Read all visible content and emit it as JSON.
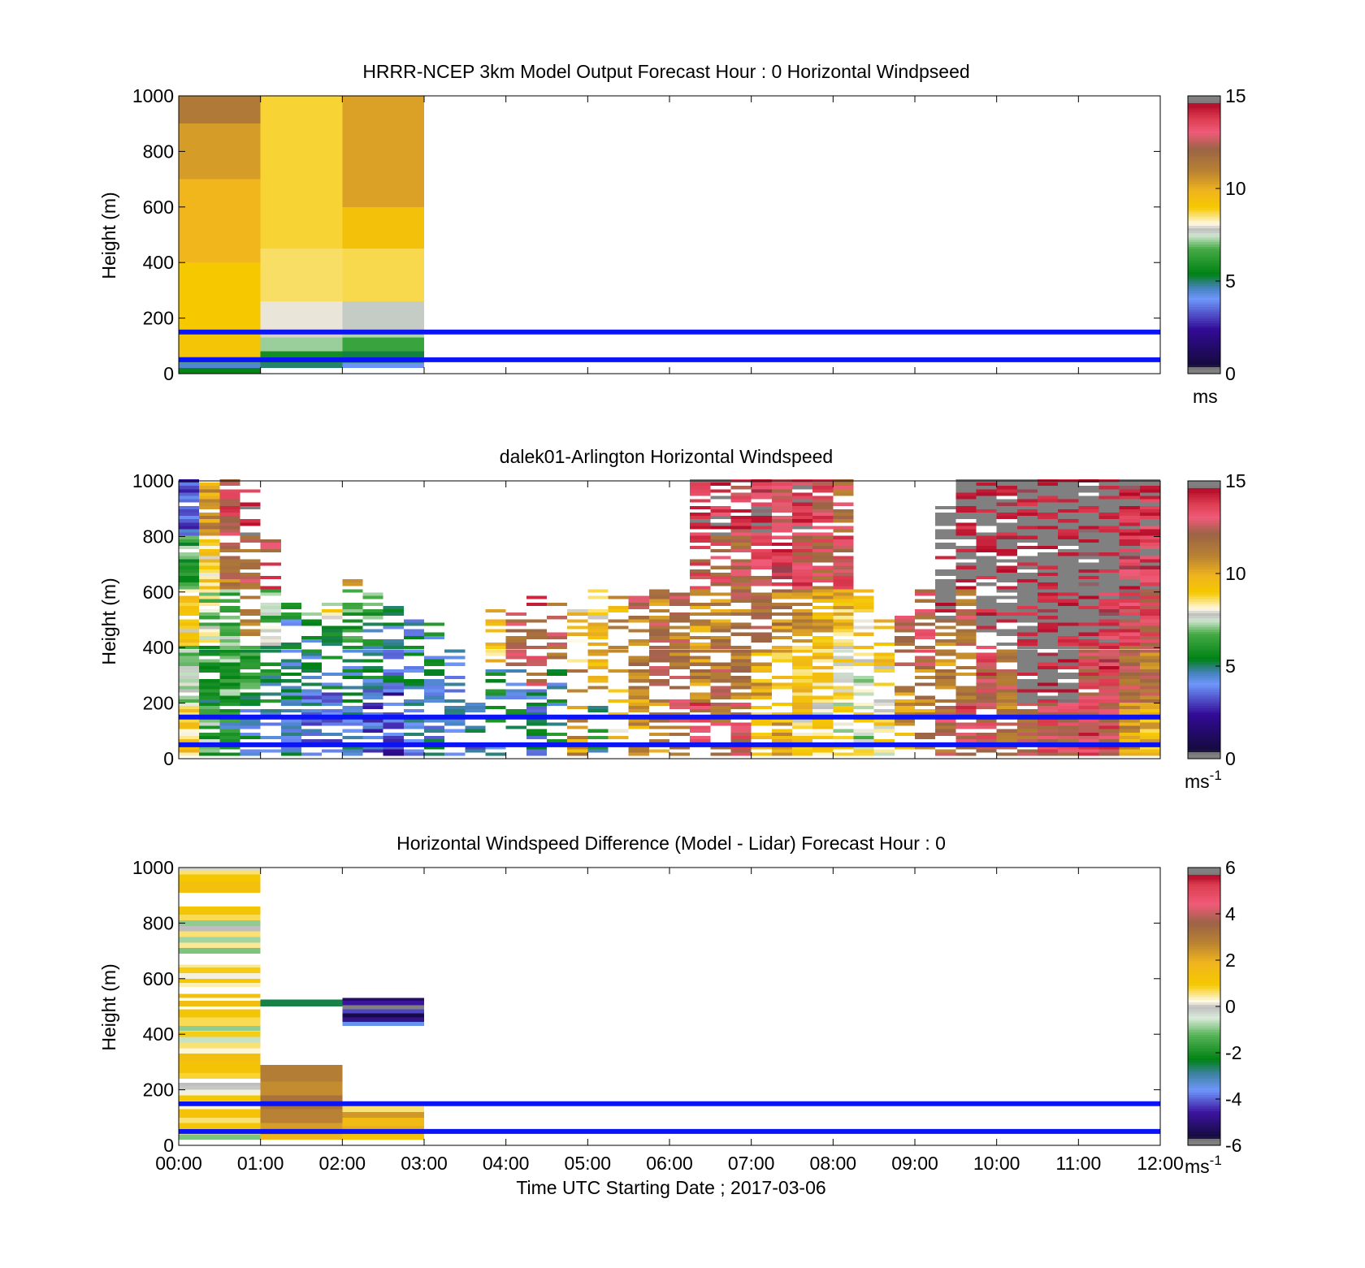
{
  "chart_data": [
    {
      "type": "heatmap",
      "title": "HRRR-NCEP 3km Model Output   Forecast Hour : 0 Horizontal Windpseed",
      "ylabel": "Height (m)",
      "xlabel": "",
      "xlim": [
        0,
        12
      ],
      "ylim": [
        0,
        1000
      ],
      "yticks": [
        "0",
        "200",
        "400",
        "600",
        "800",
        "1000"
      ],
      "xtick_labels": [],
      "colorbar": {
        "range": [
          0,
          15
        ],
        "ticks": [
          "0",
          "5",
          "10",
          "15"
        ],
        "unit": "ms",
        "unit_sup": "",
        "scale": "windspeed"
      },
      "reference_lines_m": [
        50,
        150
      ],
      "columns": [
        {
          "x_start": 0,
          "x_end": 1,
          "cells": [
            [
              0,
              20,
              5.5
            ],
            [
              20,
              40,
              4.5
            ],
            [
              40,
              60,
              6.8
            ],
            [
              60,
              150,
              9.2
            ],
            [
              150,
              400,
              9.0
            ],
            [
              400,
              700,
              9.8
            ],
            [
              700,
              900,
              10.4
            ],
            [
              900,
              1000,
              11.3
            ]
          ]
        },
        {
          "x_start": 1,
          "x_end": 2,
          "cells": [
            [
              20,
              40,
              5.0
            ],
            [
              40,
              80,
              5.8
            ],
            [
              80,
              130,
              7.2
            ],
            [
              130,
              160,
              7.9
            ],
            [
              160,
              260,
              8.0
            ],
            [
              260,
              450,
              8.6
            ],
            [
              450,
              1000,
              8.8
            ]
          ]
        },
        {
          "x_start": 2,
          "x_end": 3,
          "cells": [
            [
              20,
              40,
              4.0
            ],
            [
              40,
              80,
              5.2
            ],
            [
              80,
              130,
              6.5
            ],
            [
              130,
              160,
              7.3
            ],
            [
              160,
              260,
              7.7
            ],
            [
              260,
              450,
              8.7
            ],
            [
              450,
              600,
              9.3
            ],
            [
              600,
              1000,
              10.3
            ]
          ]
        }
      ]
    },
    {
      "type": "heatmap",
      "title": "dalek01-Arlington  Horizontal Windspeed",
      "ylabel": "Height (m)",
      "xlabel": "",
      "xlim": [
        0,
        12
      ],
      "ylim": [
        0,
        1000
      ],
      "yticks": [
        "0",
        "200",
        "400",
        "600",
        "800",
        "1000"
      ],
      "xtick_labels": [],
      "colorbar": {
        "range": [
          0,
          15
        ],
        "ticks": [
          "0",
          "5",
          "10",
          "15"
        ],
        "unit": "ms",
        "unit_sup": "-1",
        "scale": "windspeed"
      },
      "reference_lines_m": [
        50,
        150
      ],
      "time_step_h": 0.25,
      "columns_by_quarter_hour": [
        {
          "top": 1000,
          "level": [
            8.8,
            7.2,
            9.0,
            6.5,
            3.5
          ],
          "density": 0.95
        },
        {
          "top": 1000,
          "level": [
            6.5,
            6.0,
            7.5,
            9.0,
            10.5
          ],
          "density": 0.9
        },
        {
          "top": 1000,
          "level": [
            5.5,
            6.5,
            7.0,
            11.5,
            13.0
          ],
          "density": 0.85
        },
        {
          "top": 1000,
          "level": [
            5.0,
            6.0,
            10.5,
            12.0,
            14.0
          ],
          "density": 0.6
        },
        {
          "top": 800,
          "level": [
            4.5,
            5.5,
            7.0,
            13.0,
            12.0
          ],
          "density": 0.55
        },
        {
          "top": 560,
          "level": [
            4.5,
            5.0,
            7.0,
            13.5
          ],
          "density": 0.6
        },
        {
          "top": 520,
          "level": [
            4.0,
            5.0,
            7.0,
            11.5
          ],
          "density": 0.6
        },
        {
          "top": 560,
          "level": [
            4.0,
            5.0,
            8.0,
            13.0
          ],
          "density": 0.65
        },
        {
          "top": 640,
          "level": [
            4.0,
            5.0,
            6.5,
            11.0,
            12.5
          ],
          "density": 0.6
        },
        {
          "top": 600,
          "level": [
            3.5,
            5.0,
            6.5,
            13.0
          ],
          "density": 0.65
        },
        {
          "top": 560,
          "level": [
            3.0,
            4.5,
            5.5,
            5.0
          ],
          "density": 0.6
        },
        {
          "top": 500,
          "level": [
            4.0,
            4.8,
            4.5,
            2.5
          ],
          "density": 0.6
        },
        {
          "top": 480,
          "level": [
            4.5,
            5.0,
            5.5
          ],
          "density": 0.5
        },
        {
          "top": 400,
          "level": [
            4.5,
            5.0,
            9.0
          ],
          "density": 0.4
        },
        {
          "top": 300,
          "level": [
            4.0,
            5.0,
            11.0
          ],
          "density": 0.35
        },
        {
          "top": 560,
          "level": [
            5.0,
            9.5,
            10.5
          ],
          "density": 0.45
        },
        {
          "top": 520,
          "level": [
            5.0,
            12.0,
            11.0
          ],
          "density": 0.4
        },
        {
          "top": 580,
          "level": [
            4.5,
            12.5,
            13.5,
            14.0
          ],
          "density": 0.45
        },
        {
          "top": 560,
          "level": [
            5.0,
            12.0,
            11.0
          ],
          "density": 0.35
        },
        {
          "top": 560,
          "level": [
            10.5,
            9.0,
            12.0
          ],
          "density": 0.35
        },
        {
          "top": 620,
          "level": [
            5.5,
            10.0,
            9.0,
            12.5
          ],
          "density": 0.5
        },
        {
          "top": 600,
          "level": [
            9.0,
            11.5,
            10.0,
            12.0
          ],
          "density": 0.5
        },
        {
          "top": 580,
          "level": [
            10.5,
            11.0,
            12.0,
            13.0
          ],
          "density": 0.55
        },
        {
          "top": 600,
          "level": [
            11.0,
            12.0,
            11.0,
            13.5
          ],
          "density": 0.6
        },
        {
          "top": 620,
          "level": [
            12.0,
            11.5,
            12.0,
            14.0
          ],
          "density": 0.6
        },
        {
          "top": 1000,
          "level": [
            13.0,
            11.0,
            10.5,
            13.0,
            14.0
          ],
          "density": 0.7
        },
        {
          "top": 1000,
          "level": [
            12.0,
            11.5,
            11.0,
            12.5,
            14.0
          ],
          "density": 0.75
        },
        {
          "top": 1000,
          "level": [
            12.5,
            11.0,
            11.5,
            12.0,
            13.5
          ],
          "density": 0.75
        },
        {
          "top": 1000,
          "level": [
            9.5,
            10.0,
            12.0,
            13.0,
            14.0
          ],
          "density": 0.8
        },
        {
          "top": 1000,
          "level": [
            10.0,
            9.5,
            11.0,
            13.5,
            12.5
          ],
          "density": 0.8
        },
        {
          "top": 1000,
          "level": [
            9.0,
            9.5,
            10.5,
            13.0,
            14.0
          ],
          "density": 0.85
        },
        {
          "top": 1000,
          "level": [
            8.5,
            9.0,
            10.0,
            12.5,
            13.0
          ],
          "density": 0.85
        },
        {
          "top": 1000,
          "level": [
            8.0,
            8.5,
            9.5,
            13.0,
            12.0
          ],
          "density": 0.8
        },
        {
          "top": 600,
          "level": [
            7.8,
            8.8,
            11.0
          ],
          "density": 0.6
        },
        {
          "top": 500,
          "level": [
            8.5,
            9.0,
            11.0
          ],
          "density": 0.55
        },
        {
          "top": 520,
          "level": [
            10.5,
            12.0,
            12.5
          ],
          "density": 0.55
        },
        {
          "top": 600,
          "level": [
            11.0,
            12.5,
            13.5
          ],
          "density": 0.55
        },
        {
          "top": 900,
          "level": [
            12.0,
            11.0,
            15.0,
            15.0
          ],
          "density": 0.7
        },
        {
          "top": 1000,
          "level": [
            13.0,
            11.5,
            12.0,
            15.0,
            15.0
          ],
          "density": 0.75
        },
        {
          "top": 1000,
          "level": [
            12.5,
            13.0,
            15.0,
            15.0,
            15.0
          ],
          "density": 0.8
        },
        {
          "top": 1000,
          "level": [
            11.5,
            12.0,
            15.0,
            15.0,
            15.0
          ],
          "density": 0.8
        },
        {
          "top": 1000,
          "level": [
            12.0,
            15.0,
            15.0,
            15.0,
            15.0
          ],
          "density": 0.9
        },
        {
          "top": 1000,
          "level": [
            13.0,
            15.0,
            15.0,
            15.0,
            15.0
          ],
          "density": 0.92
        },
        {
          "top": 1000,
          "level": [
            12.5,
            15.0,
            15.0,
            15.0,
            15.0
          ],
          "density": 0.95
        },
        {
          "top": 1000,
          "level": [
            13.5,
            13.0,
            15.0,
            15.0,
            15.0
          ],
          "density": 0.95
        },
        {
          "top": 1000,
          "level": [
            13.0,
            13.5,
            14.0,
            15.0,
            15.0
          ],
          "density": 0.98
        },
        {
          "top": 1000,
          "level": [
            10.5,
            12.0,
            13.5,
            14.0,
            14.5
          ],
          "density": 1.0
        },
        {
          "top": 1000,
          "level": [
            9.5,
            11.5,
            13.0,
            14.0,
            14.0
          ],
          "density": 1.0
        }
      ]
    },
    {
      "type": "heatmap",
      "title": "Horizontal Windspeed Difference (Model - Lidar) Forecast Hour : 0",
      "ylabel": "Height (m)",
      "xlabel": "Time UTC  Starting Date ; 2017-03-06",
      "xlim": [
        0,
        12
      ],
      "ylim": [
        0,
        1000
      ],
      "yticks": [
        "0",
        "200",
        "400",
        "600",
        "800",
        "1000"
      ],
      "xtick_labels": [
        "00:00",
        "01:00",
        "02:00",
        "03:00",
        "04:00",
        "05:00",
        "06:00",
        "07:00",
        "08:00",
        "09:00",
        "10:00",
        "11:00",
        "12:00"
      ],
      "colorbar": {
        "range": [
          -6,
          6
        ],
        "ticks": [
          "-6",
          "-4",
          "-2",
          "0",
          "2",
          "4",
          "6"
        ],
        "unit": "ms",
        "unit_sup": "-1",
        "scale": "difference"
      },
      "reference_lines_m": [
        50,
        150
      ],
      "columns": [
        {
          "x_start": 0,
          "x_end": 1,
          "cells": [
            [
              20,
              40,
              -1.0
            ],
            [
              40,
              60,
              0.4
            ],
            [
              60,
              80,
              1.1
            ],
            [
              80,
              100,
              0.6
            ],
            [
              100,
              130,
              1.2
            ],
            [
              130,
              160,
              0.3
            ],
            [
              160,
              180,
              1.0
            ],
            [
              180,
              200,
              0.2
            ],
            [
              200,
              215,
              -0.1
            ],
            [
              215,
              225,
              0.0
            ],
            [
              240,
              260,
              0.8
            ],
            [
              260,
              300,
              1.2
            ],
            [
              300,
              330,
              1.4
            ],
            [
              330,
              350,
              0.3
            ],
            [
              350,
              370,
              0.6
            ],
            [
              370,
              390,
              -0.6
            ],
            [
              390,
              410,
              0.9
            ],
            [
              410,
              430,
              -0.9
            ],
            [
              430,
              460,
              0.7
            ],
            [
              460,
              490,
              1.1
            ],
            [
              500,
              520,
              1.5
            ],
            [
              530,
              545,
              1.3
            ],
            [
              570,
              585,
              0.4
            ],
            [
              585,
              600,
              1.0
            ],
            [
              600,
              620,
              0.2
            ],
            [
              620,
              640,
              0.9
            ],
            [
              640,
              650,
              0.5
            ],
            [
              690,
              710,
              -1.0
            ],
            [
              710,
              730,
              0.5
            ],
            [
              730,
              750,
              -0.8
            ],
            [
              750,
              770,
              0.6
            ],
            [
              770,
              790,
              0.0
            ],
            [
              790,
              810,
              -0.9
            ],
            [
              810,
              830,
              0.7
            ],
            [
              830,
              860,
              1.1
            ],
            [
              910,
              950,
              1.3
            ],
            [
              950,
              975,
              1.0
            ],
            [
              975,
              990,
              0.6
            ],
            [
              990,
              1000,
              0.1
            ]
          ]
        },
        {
          "x_start": 1,
          "x_end": 2,
          "cells": [
            [
              20,
              40,
              1.8
            ],
            [
              40,
              80,
              2.3
            ],
            [
              80,
              130,
              2.8
            ],
            [
              130,
              180,
              3.2
            ],
            [
              180,
              230,
              2.6
            ],
            [
              230,
              290,
              2.9
            ],
            [
              500,
              525,
              -2.5
            ]
          ]
        },
        {
          "x_start": 2,
          "x_end": 3,
          "cells": [
            [
              20,
              40,
              1.2
            ],
            [
              40,
              70,
              2.0
            ],
            [
              70,
              100,
              1.6
            ],
            [
              100,
              120,
              2.4
            ],
            [
              120,
              140,
              0.6
            ],
            [
              430,
              445,
              -3.5
            ],
            [
              445,
              460,
              -4.8
            ],
            [
              460,
              475,
              -5.5
            ],
            [
              475,
              490,
              -4.2
            ],
            [
              490,
              505,
              -5.8
            ],
            [
              505,
              520,
              -4.6
            ],
            [
              520,
              530,
              -5.2
            ]
          ]
        }
      ]
    }
  ]
}
